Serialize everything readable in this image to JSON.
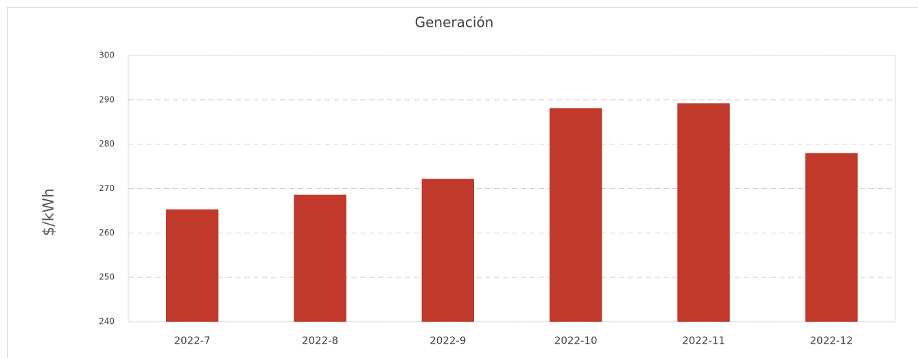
{
  "chart_data": {
    "type": "bar",
    "title": "Generación",
    "y_label": "$/kWh",
    "categories": [
      "2022-7",
      "2022-8",
      "2022-9",
      "2022-10",
      "2022-11",
      "2022-12"
    ],
    "values": [
      265.3,
      268.6,
      272.2,
      288.1,
      289.2,
      278.0
    ],
    "color": "#c0392b",
    "ylim": [
      240,
      300
    ],
    "yticks": [
      240,
      250,
      260,
      270,
      280,
      290,
      300
    ],
    "grid": true
  }
}
